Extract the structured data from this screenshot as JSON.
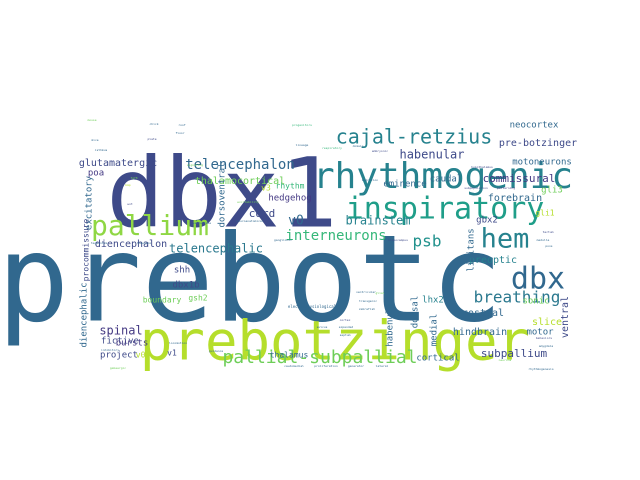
{
  "palette": {
    "p1": "#440154",
    "p2": "#482878",
    "p3": "#3e4a89",
    "p4": "#31688e",
    "p5": "#26828e",
    "p6": "#1f9e89",
    "p7": "#35b779",
    "p8": "#6ece58",
    "p9": "#b5de2b",
    "p10": "#c8e020"
  },
  "words": [
    {
      "text": "prebotc",
      "color": "#31688e",
      "weight": 1.0
    },
    {
      "text": "dbx1",
      "color": "#3e4a89",
      "weight": 0.8
    },
    {
      "text": "prebotzinger",
      "color": "#b5de2b",
      "weight": 0.72
    },
    {
      "text": "rhythmogenic",
      "color": "#26828e",
      "weight": 0.5
    },
    {
      "text": "inspiratory",
      "color": "#1f9e89",
      "weight": 0.44
    },
    {
      "text": "pallium",
      "color": "#8fd744",
      "weight": 0.4
    },
    {
      "text": "hem",
      "color": "#26828e",
      "weight": 0.38
    },
    {
      "text": "dbx",
      "color": "#31688e",
      "weight": 0.38
    },
    {
      "text": "cajal-retzius",
      "color": "#26828e",
      "weight": 0.26
    },
    {
      "text": "pallial-subpallial",
      "color": "#6ece58",
      "weight": 0.25
    },
    {
      "text": "breathing",
      "color": "#2a788e",
      "weight": 0.2
    },
    {
      "text": "psb",
      "color": "#21918c",
      "weight": 0.18
    },
    {
      "text": "interneurons",
      "color": "#35b779",
      "weight": 0.17
    },
    {
      "text": "telencephalon",
      "color": "#31688e",
      "weight": 0.16
    },
    {
      "text": "brainstem",
      "color": "#26828e",
      "weight": 0.15
    },
    {
      "text": "v0",
      "color": "#31688e",
      "weight": 0.15
    },
    {
      "text": "commissural",
      "color": "#443983",
      "weight": 0.13
    },
    {
      "text": "habenular",
      "color": "#3e4a89",
      "weight": 0.13
    },
    {
      "text": "telencephalic",
      "color": "#2a788e",
      "weight": 0.13
    },
    {
      "text": "subpallium",
      "color": "#3e4a89",
      "weight": 0.12
    },
    {
      "text": "spinal",
      "color": "#443983",
      "weight": 0.12
    },
    {
      "text": "cord",
      "color": "#3e4a89",
      "weight": 0.12
    },
    {
      "text": "thalamocortical",
      "color": "#6ece58",
      "weight": 0.1
    },
    {
      "text": "pre-botzinger",
      "color": "#3e4a89",
      "weight": 0.1
    },
    {
      "text": "forebrain",
      "color": "#31688e",
      "weight": 0.1
    },
    {
      "text": "glutamatergic",
      "color": "#3e4a89",
      "weight": 0.09
    },
    {
      "text": "preoptic",
      "color": "#26828e",
      "weight": 0.09
    },
    {
      "text": "hindbrain",
      "color": "#31688e",
      "weight": 0.09
    },
    {
      "text": "rostral",
      "color": "#31688e",
      "weight": 0.09
    },
    {
      "text": "diencephalon",
      "color": "#3e4a89",
      "weight": 0.09
    },
    {
      "text": "caudal",
      "color": "#31688e",
      "weight": 0.09
    },
    {
      "text": "motoneurons",
      "color": "#31688e",
      "weight": 0.08
    },
    {
      "text": "eminence",
      "color": "#31688e",
      "weight": 0.08
    },
    {
      "text": "hedgehog",
      "color": "#443983",
      "weight": 0.08
    },
    {
      "text": "limitans",
      "color": "#31688e",
      "weight": 0.08
    },
    {
      "text": "neocortex",
      "color": "#31688e",
      "weight": 0.08
    },
    {
      "text": "dorsoventral",
      "color": "#31688e",
      "weight": 0.08
    },
    {
      "text": "excitatory",
      "color": "#31688e",
      "weight": 0.08
    },
    {
      "text": "procommissure",
      "color": "#3e4a89",
      "weight": 0.07
    },
    {
      "text": "diencephalic",
      "color": "#31688e",
      "weight": 0.08
    },
    {
      "text": "rhythm",
      "color": "#35b779",
      "weight": 0.07
    },
    {
      "text": "thalamus",
      "color": "#31688e",
      "weight": 0.07
    },
    {
      "text": "boundary",
      "color": "#6ece58",
      "weight": 0.07
    },
    {
      "text": "fictive",
      "color": "#3e4a89",
      "weight": 0.07
    },
    {
      "text": "bursts",
      "color": "#443983",
      "weight": 0.07
    },
    {
      "text": "project",
      "color": "#3e4a89",
      "weight": 0.07
    },
    {
      "text": "cortical",
      "color": "#31688e",
      "weight": 0.07
    },
    {
      "text": "motor",
      "color": "#31688e",
      "weight": 0.07
    },
    {
      "text": "slice",
      "color": "#b5de2b",
      "weight": 0.07
    },
    {
      "text": "sonic",
      "color": "#6ece58",
      "weight": 0.07
    },
    {
      "text": "ventral",
      "color": "#3e4a89",
      "weight": 0.07
    },
    {
      "text": "medial",
      "color": "#31688e",
      "weight": 0.07
    },
    {
      "text": "dorsal",
      "color": "#31688e",
      "weight": 0.07
    },
    {
      "text": "habenula",
      "color": "#31688e",
      "weight": 0.07
    },
    {
      "text": "lhx2",
      "color": "#26828e",
      "weight": 0.07
    },
    {
      "text": "gbx2",
      "color": "#3e4a89",
      "weight": 0.06
    },
    {
      "text": "gli3",
      "color": "#6ece58",
      "weight": 0.06
    },
    {
      "text": "shh",
      "color": "#3e4a89",
      "weight": 0.06
    },
    {
      "text": "dbx1b",
      "color": "#3e4a89",
      "weight": 0.06
    },
    {
      "text": "gsh2",
      "color": "#6ece58",
      "weight": 0.06
    },
    {
      "text": "v0v",
      "color": "#b5de2b",
      "weight": 0.06
    },
    {
      "text": "v1",
      "color": "#3e4a89",
      "weight": 0.06
    },
    {
      "text": "v3",
      "color": "#b5de2b",
      "weight": 0.06
    },
    {
      "text": "poa",
      "color": "#443983",
      "weight": 0.06
    },
    {
      "text": "gli1",
      "color": "#b5de2b",
      "weight": 0.05
    },
    {
      "text": "electrophysiological",
      "color": "#31688e",
      "weight": 0.04
    },
    {
      "text": "neuroanatomical",
      "color": "#31688e",
      "weight": 0.03
    },
    {
      "text": "excitability",
      "color": "#6ece58",
      "weight": 0.03
    },
    {
      "text": "locomotion",
      "color": "#31688e",
      "weight": 0.03
    },
    {
      "text": "respiratory",
      "color": "#35b779",
      "weight": 0.03
    },
    {
      "text": "embryonic",
      "color": "#3e4a89",
      "weight": 0.03
    },
    {
      "text": "caudomedial",
      "color": "#31688e",
      "weight": 0.03
    },
    {
      "text": "subpopulation",
      "color": "#3e4a89",
      "weight": 0.03
    },
    {
      "text": "patterning",
      "color": "#443983",
      "weight": 0.03
    },
    {
      "text": "proliferation",
      "color": "#31688e",
      "weight": 0.03
    },
    {
      "text": "neurons",
      "color": "#6ece58",
      "weight": 0.03
    },
    {
      "text": "migration",
      "color": "#31688e",
      "weight": 0.03
    },
    {
      "text": "generator",
      "color": "#31688e",
      "weight": 0.03
    },
    {
      "text": "lateral",
      "color": "#31688e",
      "weight": 0.03
    },
    {
      "text": "guidance",
      "color": "#31688e",
      "weight": 0.03
    },
    {
      "text": "ganglionic",
      "color": "#31688e",
      "weight": 0.03
    },
    {
      "text": "expanded",
      "color": "#31688e",
      "weight": 0.03
    },
    {
      "text": "sulcus",
      "color": "#31688e",
      "weight": 0.03
    },
    {
      "text": "glial",
      "color": "#6ece58",
      "weight": 0.03
    },
    {
      "text": "ventricular",
      "color": "#31688e",
      "weight": 0.03
    },
    {
      "text": "transgenic",
      "color": "#31688e",
      "weight": 0.03
    },
    {
      "text": "zebrafish",
      "color": "#31688e",
      "weight": 0.03
    },
    {
      "text": "cortex",
      "color": "#3e4a89",
      "weight": 0.03
    },
    {
      "text": "septum",
      "color": "#31688e",
      "weight": 0.03
    },
    {
      "text": "hypothalamus",
      "color": "#3e4a89",
      "weight": 0.03
    },
    {
      "text": "amygdala",
      "color": "#31688e",
      "weight": 0.03
    },
    {
      "text": "behaviors",
      "color": "#3e4a89",
      "weight": 0.03
    },
    {
      "text": "rhythmogenesis",
      "color": "#31688e",
      "weight": 0.03
    },
    {
      "text": "gabaergic",
      "color": "#6ece58",
      "weight": 0.03
    },
    {
      "text": "inhibitory",
      "color": "#31688e",
      "weight": 0.03
    },
    {
      "text": "progenitors",
      "color": "#35b779",
      "weight": 0.03
    },
    {
      "text": "lineage",
      "color": "#31688e",
      "weight": 0.03
    },
    {
      "text": "domain",
      "color": "#31688e",
      "weight": 0.03
    },
    {
      "text": "wnt",
      "color": "#3e4a89",
      "weight": 0.03
    },
    {
      "text": "bmp",
      "color": "#b5de2b",
      "weight": 0.03
    },
    {
      "text": "fgf8",
      "color": "#6ece58",
      "weight": 0.03
    },
    {
      "text": "isthmus",
      "color": "#31688e",
      "weight": 0.03
    },
    {
      "text": "mice",
      "color": "#31688e",
      "weight": 0.03
    },
    {
      "text": "mouse",
      "color": "#6ece58",
      "weight": 0.03
    },
    {
      "text": "chick",
      "color": "#31688e",
      "weight": 0.03
    },
    {
      "text": "vertebrate",
      "color": "#31688e",
      "weight": 0.03
    },
    {
      "text": "plate",
      "color": "#3e4a89",
      "weight": 0.03
    },
    {
      "text": "roof",
      "color": "#31688e",
      "weight": 0.03
    },
    {
      "text": "floor",
      "color": "#31688e",
      "weight": 0.03
    },
    {
      "text": "signaling",
      "color": "#6ece58",
      "weight": 0.03
    },
    {
      "text": "homeobox",
      "color": "#31688e",
      "weight": 0.03
    },
    {
      "text": "hippocampus",
      "color": "#3e4a89",
      "weight": 0.03
    },
    {
      "text": "medulla",
      "color": "#31688e",
      "weight": 0.03
    },
    {
      "text": "pons",
      "color": "#31688e",
      "weight": 0.03
    },
    {
      "text": "tectum",
      "color": "#3e4a89",
      "weight": 0.03
    },
    {
      "text": "tegmentum",
      "color": "#31688e",
      "weight": 0.03
    }
  ]
}
